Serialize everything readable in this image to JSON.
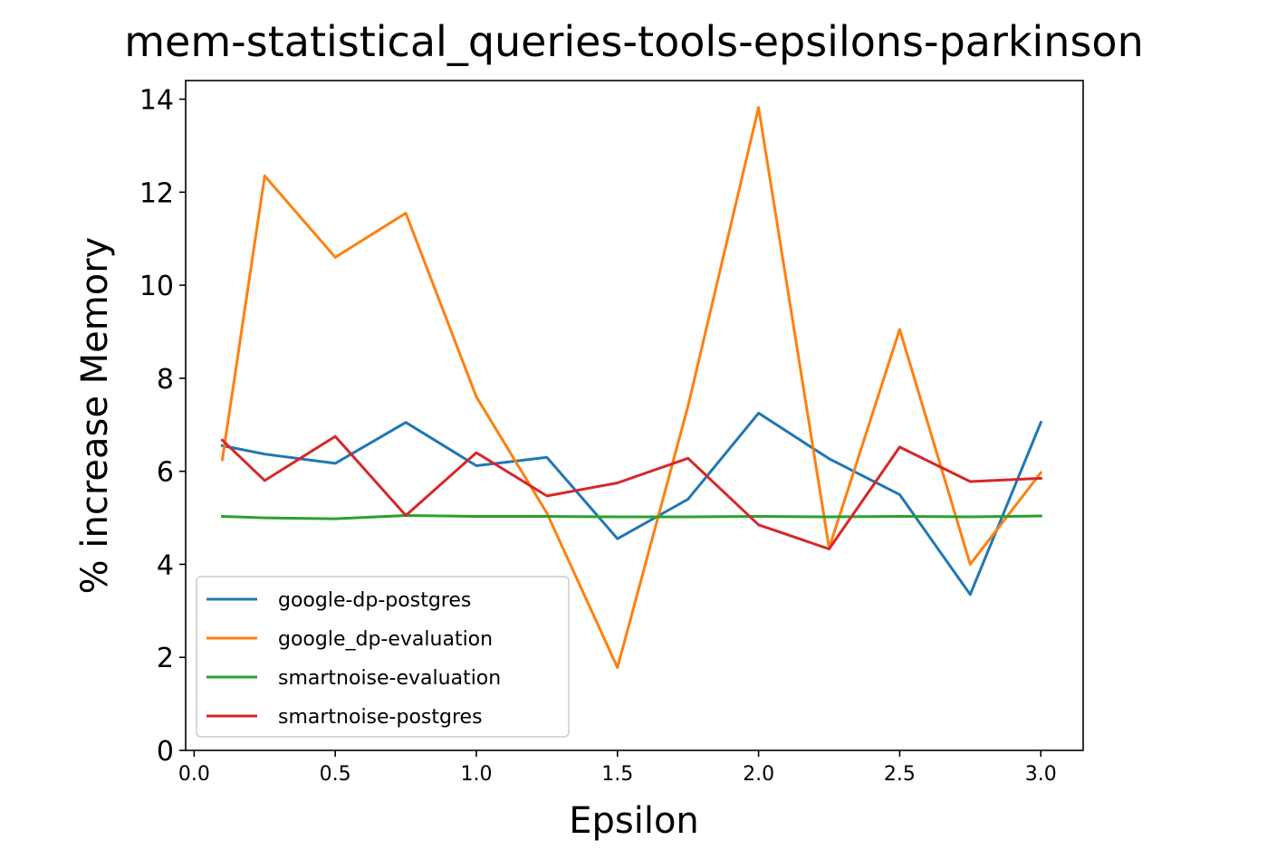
{
  "chart_data": {
    "type": "line",
    "title": "mem-statistical_queries-tools-epsilons-parkinson",
    "xlabel": "Epsilon",
    "ylabel": "% increase Memory",
    "xlim": [
      -0.03,
      3.15
    ],
    "ylim": [
      0,
      14.4
    ],
    "xticks": [
      0.0,
      0.5,
      1.0,
      1.5,
      2.0,
      2.5,
      3.0
    ],
    "xtick_labels": [
      "0.0",
      "0.5",
      "1.0",
      "1.5",
      "2.0",
      "2.5",
      "3.0"
    ],
    "yticks": [
      0,
      2,
      4,
      6,
      8,
      10,
      12,
      14
    ],
    "ytick_labels": [
      "0",
      "2",
      "4",
      "6",
      "8",
      "10",
      "12",
      "14"
    ],
    "grid": false,
    "legend_position": "lower-left",
    "x": [
      0.1,
      0.25,
      0.5,
      0.75,
      1.0,
      1.25,
      1.5,
      1.75,
      2.0,
      2.25,
      2.5,
      2.75,
      3.0
    ],
    "series": [
      {
        "name": "google-dp-postgres",
        "color": "#1f77b4",
        "values": [
          6.55,
          6.37,
          6.17,
          7.05,
          6.12,
          6.3,
          4.55,
          5.4,
          7.25,
          6.27,
          5.5,
          3.35,
          7.05
        ]
      },
      {
        "name": "google_dp-evaluation",
        "color": "#ff7f0e",
        "values": [
          6.25,
          12.35,
          10.6,
          11.55,
          7.6,
          5.1,
          1.78,
          7.4,
          13.82,
          4.35,
          9.05,
          4.0,
          5.97
        ]
      },
      {
        "name": "smartnoise-evaluation",
        "color": "#2ca02c",
        "values": [
          5.03,
          5.0,
          4.98,
          5.05,
          5.03,
          5.03,
          5.02,
          5.02,
          5.03,
          5.02,
          5.03,
          5.02,
          5.04
        ]
      },
      {
        "name": "smartnoise-postgres",
        "color": "#d62728",
        "values": [
          6.67,
          5.8,
          6.75,
          5.05,
          6.4,
          5.47,
          5.75,
          6.28,
          4.85,
          4.33,
          6.52,
          5.78,
          5.85
        ]
      }
    ]
  }
}
